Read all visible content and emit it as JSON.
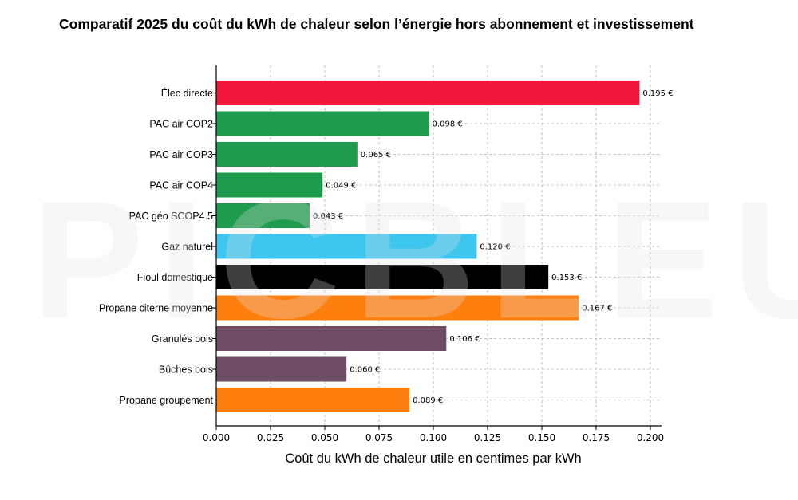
{
  "chart_data": {
    "type": "bar",
    "orientation": "horizontal",
    "title": "Comparatif 2025 du coût du kWh de chaleur selon l’énergie hors abonnement et investissement",
    "xlabel": "Coût du kWh de chaleur utile en centimes par kWh",
    "ylabel": "",
    "xlim": [
      0,
      0.2
    ],
    "xticks": [
      "0.000",
      "0.025",
      "0.050",
      "0.075",
      "0.100",
      "0.125",
      "0.150",
      "0.175",
      "0.200"
    ],
    "grid": true,
    "categories": [
      "Élec directe",
      "PAC air COP2",
      "PAC air COP3",
      "PAC air COP4",
      "PAC géo SCOP4.5",
      "Gaz naturel",
      "Fioul domestique",
      "Propane citerne moyenne",
      "Granulés bois",
      "Bûches bois",
      "Propane groupement"
    ],
    "values": [
      0.195,
      0.098,
      0.065,
      0.049,
      0.043,
      0.12,
      0.153,
      0.167,
      0.106,
      0.06,
      0.089
    ],
    "value_labels": [
      "0.195 €",
      "0.098 €",
      "0.065 €",
      "0.049 €",
      "0.043 €",
      "0.120 €",
      "0.153 €",
      "0.167 €",
      "0.106 €",
      "0.060 €",
      "0.089 €"
    ],
    "colors": [
      "#f0173a",
      "#1f9b4e",
      "#1f9b4e",
      "#1f9b4e",
      "#1f9b4e",
      "#3ec6ef",
      "#000000",
      "#ff7f0e",
      "#6e4c63",
      "#6e4c63",
      "#ff7f0e"
    ]
  },
  "watermark": "PICBLEU"
}
